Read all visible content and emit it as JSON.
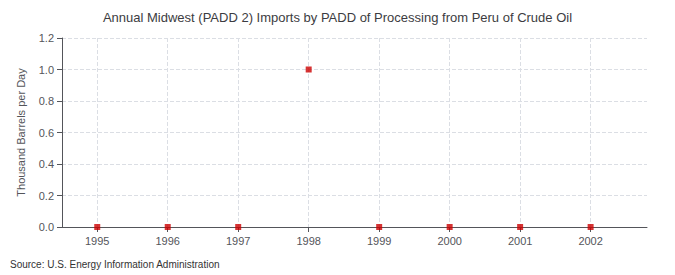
{
  "chart_data": {
    "type": "scatter",
    "title": "Annual Midwest (PADD 2) Imports by PADD of Processing from Peru of Crude Oil",
    "ylabel": "Thousand Barrels per Day",
    "source": "Source: U.S. Energy Information Administration",
    "x": [
      1995,
      1996,
      1997,
      1998,
      1999,
      2000,
      2001,
      2002
    ],
    "values": [
      0.0,
      0.0,
      0.0,
      1.0,
      0.0,
      0.0,
      0.0,
      0.0
    ],
    "color": "#cc0000",
    "marker": "square",
    "xlim": [
      1994.5,
      2002.8
    ],
    "xticks": [
      1995,
      1996,
      1997,
      1998,
      1999,
      2000,
      2001,
      2002
    ],
    "ylim": [
      0.0,
      1.2
    ],
    "yticks": [
      {
        "value": 0,
        "label": "0.0"
      },
      0.2,
      0.4,
      0.6,
      0.8,
      {
        "value": 1,
        "label": "1.0"
      },
      1.2
    ],
    "grid": true
  }
}
